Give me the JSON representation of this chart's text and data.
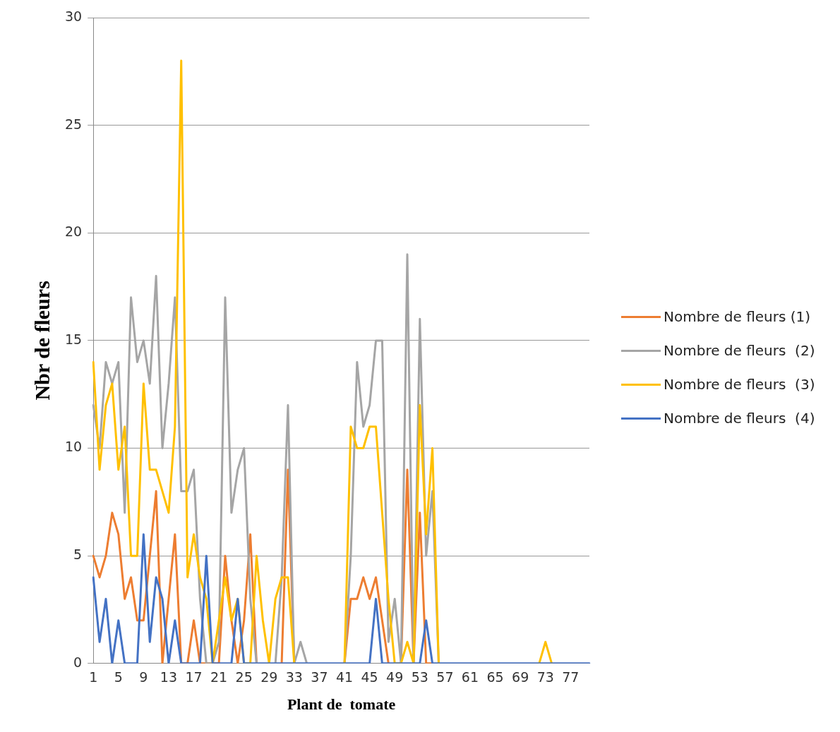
{
  "chart_data": {
    "type": "line",
    "xlabel": "Plant de  tomate",
    "ylabel": "Nbr de fleurs",
    "categories": [
      "1",
      null,
      null,
      null,
      "5",
      null,
      null,
      null,
      "9",
      null,
      null,
      null,
      "13",
      null,
      null,
      null,
      "17",
      null,
      null,
      null,
      "21",
      null,
      null,
      null,
      "25",
      null,
      null,
      null,
      "29",
      null,
      null,
      null,
      "33",
      null,
      null,
      null,
      "37",
      null,
      null,
      null,
      "41",
      null,
      null,
      null,
      "45",
      null,
      null,
      null,
      "49",
      null,
      null,
      null,
      "53",
      null,
      null,
      null,
      "57",
      null,
      null,
      null,
      "61",
      null,
      null,
      null,
      "65",
      null,
      null,
      null,
      "69",
      null,
      null,
      null,
      "73",
      null,
      null,
      null,
      "77",
      null,
      null,
      null
    ],
    "series": [
      {
        "name": "Nombre de fleurs (1)",
        "color": "#ed7d31",
        "values": [
          5,
          4,
          5,
          7,
          6,
          3,
          4,
          2,
          2,
          5,
          8,
          0,
          3,
          6,
          0,
          0,
          2,
          0,
          0,
          0,
          0,
          5,
          2,
          0,
          2,
          6,
          0,
          null,
          null,
          null,
          0,
          9,
          0,
          null,
          null,
          null,
          null,
          null,
          null,
          null,
          0,
          3,
          3,
          4,
          3,
          4,
          2,
          0,
          null,
          0,
          9,
          0,
          7,
          0,
          0,
          null,
          null,
          null,
          null,
          null,
          null,
          null,
          null,
          null,
          null,
          null,
          null,
          null,
          null,
          null,
          null,
          null,
          null,
          null,
          null,
          null,
          null,
          null,
          null,
          null
        ]
      },
      {
        "name": "Nombre de fleurs  (2)",
        "color": "#a5a5a5",
        "values": [
          12,
          10,
          14,
          13,
          14,
          7,
          17,
          14,
          15,
          13,
          18,
          10,
          13,
          17,
          8,
          8,
          9,
          3,
          0,
          0,
          1,
          17,
          7,
          9,
          10,
          3,
          0,
          null,
          null,
          0,
          4,
          12,
          0,
          1,
          0,
          null,
          null,
          null,
          null,
          null,
          0,
          5,
          14,
          11,
          12,
          15,
          15,
          1,
          3,
          0,
          19,
          0,
          16,
          5,
          8,
          0,
          null,
          null,
          null,
          null,
          null,
          null,
          null,
          null,
          null,
          null,
          null,
          null,
          null,
          null,
          null,
          null,
          null,
          null,
          null,
          null,
          null,
          null,
          null,
          null
        ]
      },
      {
        "name": "Nombre de fleurs  (3)",
        "color": "#ffc000",
        "values": [
          14,
          9,
          12,
          13,
          9,
          11,
          5,
          5,
          13,
          9,
          9,
          8,
          7,
          11,
          28,
          4,
          6,
          4,
          3,
          0,
          2,
          4,
          2,
          3,
          0,
          0,
          5,
          2,
          0,
          3,
          4,
          4,
          0,
          null,
          null,
          null,
          null,
          null,
          null,
          null,
          0,
          11,
          10,
          10,
          11,
          11,
          7,
          3,
          0,
          0,
          1,
          0,
          12,
          6,
          10,
          0,
          null,
          null,
          null,
          null,
          null,
          null,
          null,
          null,
          null,
          null,
          null,
          null,
          null,
          null,
          null,
          0,
          1,
          0,
          null,
          null,
          null,
          null,
          null,
          null
        ]
      },
      {
        "name": "Nombre de fleurs  (4)",
        "color": "#4472c4",
        "values": [
          4,
          1,
          3,
          0,
          2,
          0,
          0,
          0,
          6,
          1,
          4,
          3,
          0,
          2,
          0,
          0,
          0,
          0,
          5,
          0,
          0,
          0,
          0,
          3,
          0,
          0,
          0,
          0,
          0,
          0,
          0,
          0,
          0,
          0,
          0,
          0,
          0,
          0,
          0,
          0,
          0,
          0,
          0,
          0,
          0,
          3,
          0,
          0,
          0,
          0,
          0,
          0,
          0,
          2,
          0,
          0,
          0,
          0,
          0,
          0,
          0,
          0,
          0,
          0,
          0,
          0,
          0,
          0,
          0,
          0,
          0,
          0,
          0,
          0,
          0,
          0,
          0,
          0,
          0,
          0
        ]
      }
    ],
    "ylim": [
      0,
      30
    ],
    "yticks": [
      0,
      5,
      10,
      15,
      20,
      25,
      30
    ],
    "grid": "y",
    "legend": "right",
    "marker": "none",
    "line_style": "solid"
  }
}
